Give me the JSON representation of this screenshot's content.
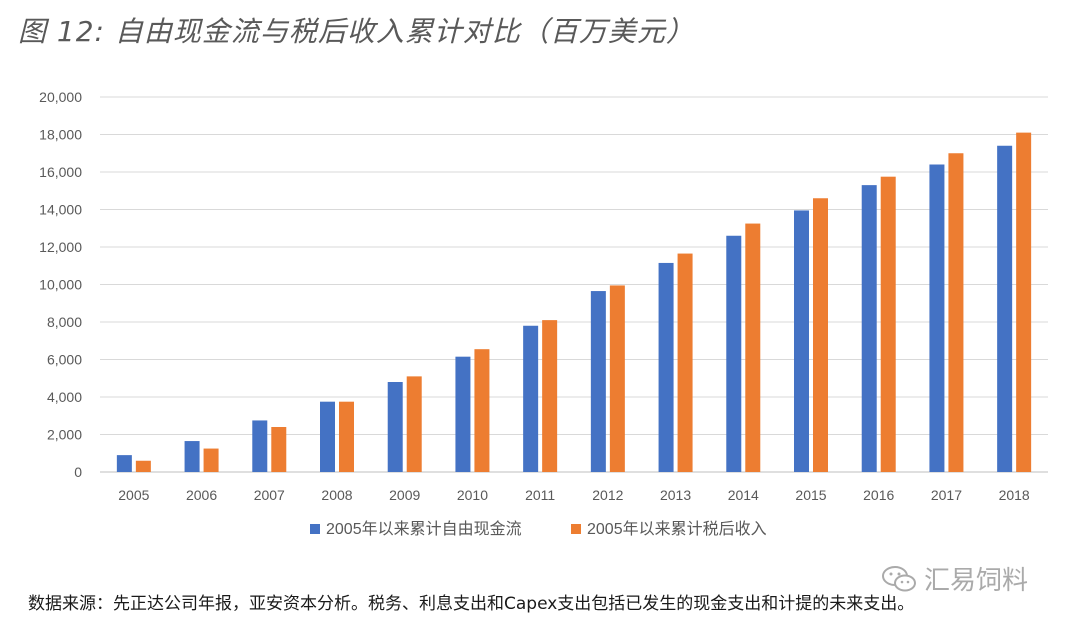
{
  "figure": {
    "title": "图 12: 自由现金流与税后收入累计对比（百万美元）",
    "source_note": "数据来源：先正达公司年报，亚安资本分析。税务、利息支出和Capex支出包括已发生的现金支出和计提的未来支出。",
    "watermark": "汇易饲料"
  },
  "colors": {
    "series1": "#4472C4",
    "series2": "#ED7D31",
    "grid": "#D9D9D9",
    "axis_text": "#595959"
  },
  "chart_data": {
    "type": "bar",
    "title": "自由现金流与税后收入累计对比（百万美元）",
    "categories": [
      "2005",
      "2006",
      "2007",
      "2008",
      "2009",
      "2010",
      "2011",
      "2012",
      "2013",
      "2014",
      "2015",
      "2016",
      "2017",
      "2018"
    ],
    "series": [
      {
        "name": "2005年以来累计自由现金流",
        "values": [
          900,
          1650,
          2750,
          3750,
          4800,
          6150,
          7800,
          9650,
          11150,
          12600,
          13950,
          15300,
          16400,
          17400
        ]
      },
      {
        "name": "2005年以来累计税后收入",
        "values": [
          600,
          1250,
          2400,
          3750,
          5100,
          6550,
          8100,
          9950,
          11650,
          13250,
          14600,
          15750,
          17000,
          18100
        ]
      }
    ],
    "ylim": [
      0,
      20000
    ],
    "yticks": [
      0,
      2000,
      4000,
      6000,
      8000,
      10000,
      12000,
      14000,
      16000,
      18000,
      20000
    ],
    "ytick_labels": [
      "0",
      "2,000",
      "4,000",
      "6,000",
      "8,000",
      "10,000",
      "12,000",
      "14,000",
      "16,000",
      "18,000",
      "20,000"
    ],
    "grid": true,
    "legend_position": "bottom"
  }
}
